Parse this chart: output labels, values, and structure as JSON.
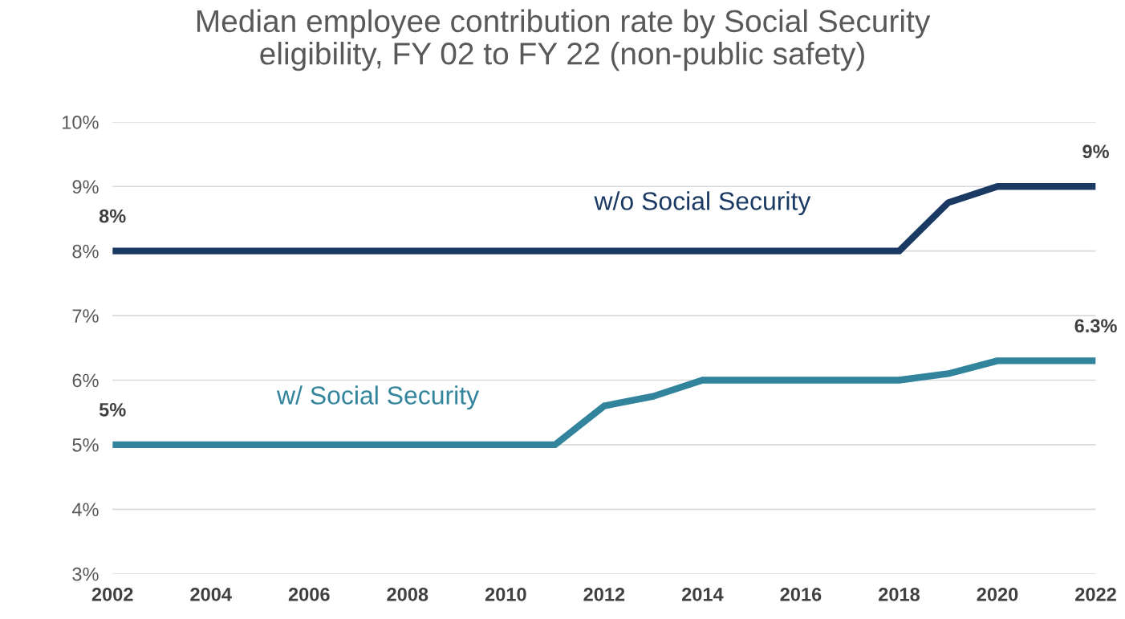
{
  "chart_data": {
    "type": "line",
    "title": "Median employee contribution rate by Social Security eligibility, FY 02 to FY 22 (non-public safety)",
    "x": [
      2002,
      2003,
      2004,
      2005,
      2006,
      2007,
      2008,
      2009,
      2010,
      2011,
      2012,
      2013,
      2014,
      2015,
      2016,
      2017,
      2018,
      2019,
      2020,
      2021,
      2022
    ],
    "series": [
      {
        "name": "w/o Social Security",
        "color": "#1b3a63",
        "values": [
          8,
          8,
          8,
          8,
          8,
          8,
          8,
          8,
          8,
          8,
          8,
          8,
          8,
          8,
          8,
          8,
          8,
          8.75,
          9,
          9,
          9
        ],
        "value_labels": [
          "8%",
          null,
          null,
          null,
          null,
          null,
          null,
          null,
          null,
          null,
          null,
          null,
          null,
          null,
          null,
          null,
          null,
          null,
          null,
          null,
          "9%"
        ]
      },
      {
        "name": "w/ Social Security",
        "color": "#31849b",
        "values": [
          5,
          5,
          5,
          5,
          5,
          5,
          5,
          5,
          5,
          5,
          5.6,
          5.75,
          6,
          6,
          6,
          6,
          6,
          6.1,
          6.3,
          6.3,
          6.3
        ],
        "value_labels": [
          "5%",
          null,
          null,
          null,
          null,
          null,
          null,
          null,
          null,
          null,
          null,
          null,
          null,
          null,
          null,
          null,
          null,
          null,
          null,
          null,
          "6.3%"
        ]
      }
    ],
    "xlim": [
      2002,
      2022
    ],
    "xticks": [
      2002,
      2004,
      2006,
      2008,
      2010,
      2012,
      2014,
      2016,
      2018,
      2020,
      2022
    ],
    "ylim": [
      3,
      10
    ],
    "yticks": [
      {
        "value": 3,
        "label": "3%"
      },
      {
        "value": 4,
        "label": "4%"
      },
      {
        "value": 5,
        "label": "5%"
      },
      {
        "value": 6,
        "label": "6%"
      },
      {
        "value": 7,
        "label": "7%"
      },
      {
        "value": 8,
        "label": "8%"
      },
      {
        "value": 9,
        "label": "9%"
      },
      {
        "value": 10,
        "label": "10%"
      }
    ],
    "grid": "y",
    "legend": false,
    "marker": "none",
    "line_style": "solid"
  }
}
